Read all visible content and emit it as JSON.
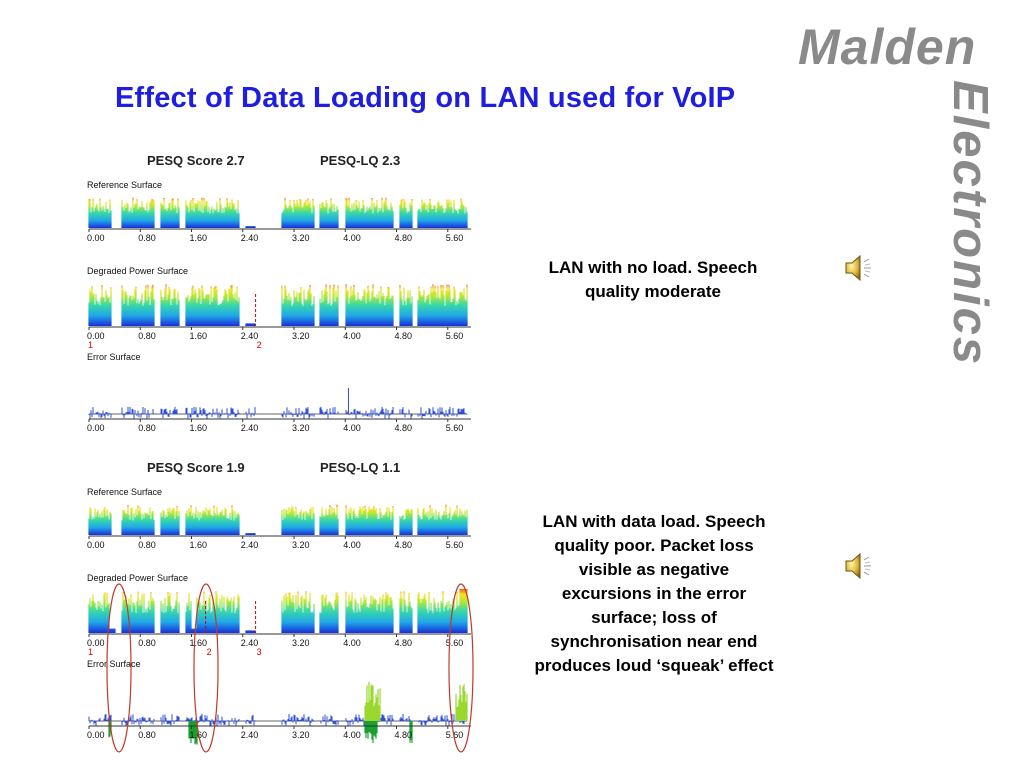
{
  "title": "Effect of Data Loading on LAN used for VoIP",
  "logo": {
    "line1": "Malden",
    "line2": "Electronics",
    "color": "#8a8a8a"
  },
  "panels": [
    {
      "pesq_score": "PESQ Score 2.7",
      "pesq_lq": "PESQ-LQ 2.3",
      "tracks": [
        {
          "label": "Reference Surface",
          "kind": "power",
          "dropout": false
        },
        {
          "label": "Degraded Power Surface",
          "kind": "power",
          "dropout": false,
          "markers": [
            "1",
            "2"
          ]
        },
        {
          "label": "Error Surface",
          "kind": "error",
          "bursts": false
        }
      ],
      "highlights": [],
      "caption": "LAN with no load. Speech quality moderate",
      "speaker_icon": "speaker-icon"
    },
    {
      "pesq_score": "PESQ Score 1.9",
      "pesq_lq": "PESQ-LQ 1.1",
      "tracks": [
        {
          "label": "Reference Surface",
          "kind": "power",
          "dropout": false
        },
        {
          "label": "Degraded Power Surface",
          "kind": "power",
          "dropout": true,
          "markers": [
            "1",
            "2",
            "3"
          ]
        },
        {
          "label": "Error Surface",
          "kind": "error",
          "bursts": true
        }
      ],
      "highlights": [
        "0.40",
        "1.70",
        "5.70"
      ],
      "caption": "LAN with data load. Speech quality poor. Packet loss visible as negative excursions in the error surface; loss of synchronisation near end produces loud ‘squeak’ effect",
      "speaker_icon": "speaker-icon"
    }
  ],
  "axis_ticks": [
    "0.00",
    "0.80",
    "1.60",
    "2.40",
    "3.20",
    "4.00",
    "4.80",
    "5.60"
  ],
  "colors": {
    "title": "#1f1ee0",
    "marker": "#dd0000",
    "highlight_ellipse": "#c0392b",
    "error_trace": "#2f4fd8"
  }
}
